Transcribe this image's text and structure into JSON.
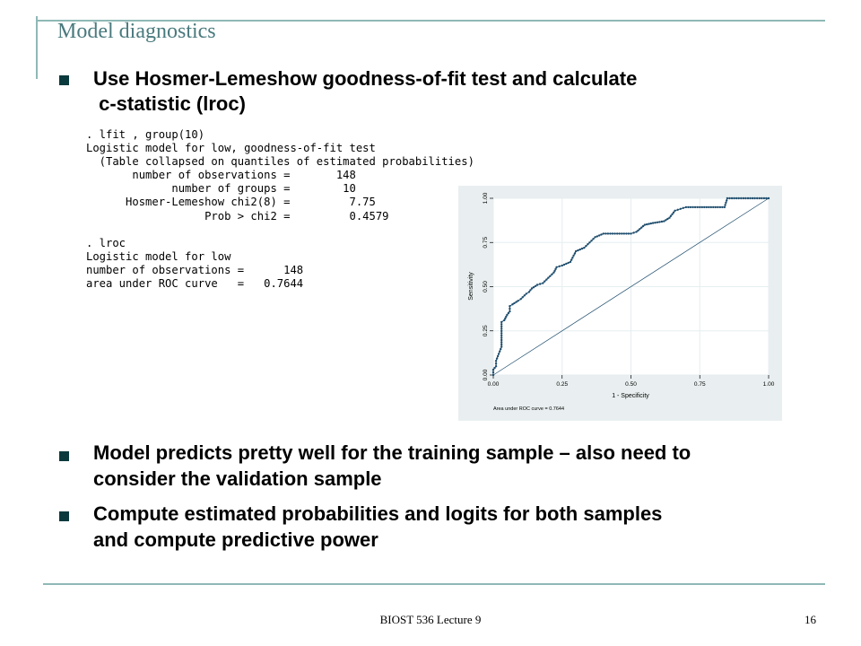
{
  "slide": {
    "title": "Model diagnostics",
    "bullets": [
      {
        "lines": [
          "Use Hosmer-Lemeshow goodness-of-fit test and calculate",
          " c-statistic (lroc)"
        ]
      },
      {
        "lines": [
          "Model predicts pretty well for the training sample – also need to",
          "consider the validation sample"
        ]
      },
      {
        "lines": [
          "Compute estimated probabilities and logits for both samples",
          "and compute predictive power"
        ]
      }
    ],
    "stata_output": [
      ". lfit , group(10)",
      "Logistic model for low, goodness-of-fit test",
      "  (Table collapsed on quantiles of estimated probabilities)",
      "       number of observations =       148",
      "             number of groups =        10",
      "      Hosmer-Lemeshow chi2(8) =         7.75",
      "                  Prob > chi2 =         0.4579",
      "",
      ". lroc",
      "Logistic model for low",
      "number of observations =      148",
      "area under ROC curve   =   0.7644"
    ],
    "footer": {
      "center": "BIOST 536 Lecture 9",
      "page": "16"
    }
  },
  "chart_data": {
    "type": "line",
    "xlabel": "1 - Specificity",
    "ylabel": "Sensitivity",
    "xlim": [
      0,
      1
    ],
    "ylim": [
      0,
      1
    ],
    "x_ticks": [
      "0.00",
      "0.25",
      "0.50",
      "0.75",
      "1.00"
    ],
    "y_ticks": [
      "0.00",
      "0.25",
      "0.50",
      "0.75",
      "1.00"
    ],
    "grid": true,
    "note": "Area under ROC curve = 0.7644",
    "colors": {
      "roc": "#1f4e6e",
      "reference": "#1f4e6e",
      "background": "#e9eff0",
      "plot": "#ffffff",
      "grid": "#e6eef0"
    },
    "series": [
      {
        "name": "",
        "x": [
          0.0,
          0.0,
          0.01,
          0.01,
          0.02,
          0.03,
          0.03,
          0.04,
          0.05,
          0.06,
          0.06,
          0.07,
          0.09,
          0.1,
          0.12,
          0.13,
          0.14,
          0.16,
          0.18,
          0.2,
          0.22,
          0.23,
          0.25,
          0.28,
          0.3,
          0.33,
          0.35,
          0.37,
          0.4,
          0.45,
          0.5,
          0.52,
          0.55,
          0.58,
          0.62,
          0.64,
          0.65,
          0.66,
          0.68,
          0.7,
          0.75,
          0.84,
          0.85,
          0.9,
          1.0
        ],
        "y": [
          0.0,
          0.03,
          0.05,
          0.08,
          0.12,
          0.16,
          0.3,
          0.31,
          0.34,
          0.36,
          0.39,
          0.4,
          0.42,
          0.43,
          0.46,
          0.47,
          0.49,
          0.51,
          0.52,
          0.55,
          0.58,
          0.61,
          0.62,
          0.64,
          0.7,
          0.72,
          0.75,
          0.78,
          0.8,
          0.8,
          0.8,
          0.81,
          0.85,
          0.86,
          0.87,
          0.89,
          0.91,
          0.93,
          0.94,
          0.95,
          0.95,
          0.95,
          1.0,
          1.0,
          1.0
        ]
      },
      {
        "name": "",
        "x": [
          0,
          1
        ],
        "y": [
          0,
          1
        ]
      }
    ]
  }
}
